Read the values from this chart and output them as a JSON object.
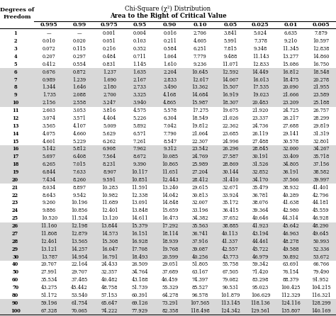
{
  "title1": "Chi-Square (χ²) Distribution",
  "title2": "Area to the Right of Critical Value",
  "col_headers": [
    "0.995",
    "0.99",
    "0.975",
    "0.95",
    "0.90",
    "0.10",
    "0.05",
    "0.025",
    "0.01",
    "0.005"
  ],
  "row_labels": [
    "1",
    "2",
    "3",
    "4",
    "5",
    "6",
    "7",
    "8",
    "9",
    "10",
    "11",
    "12",
    "13",
    "14",
    "15",
    "16",
    "17",
    "18",
    "19",
    "20",
    "21",
    "22",
    "23",
    "24",
    "25",
    "26",
    "27",
    "28",
    "29",
    "30",
    "40",
    "50",
    "60",
    "70",
    "80",
    "90",
    "100"
  ],
  "table_data": [
    [
      "—",
      "—",
      "0.001",
      "0.004",
      "0.016",
      "2.706",
      "3.841",
      "5.024",
      "6.635",
      "7.879"
    ],
    [
      "0.010",
      "0.020",
      "0.051",
      "0.103",
      "0.211",
      "4.605",
      "5.991",
      "7.378",
      "9.210",
      "10.597"
    ],
    [
      "0.072",
      "0.115",
      "0.216",
      "0.352",
      "0.584",
      "6.251",
      "7.815",
      "9.348",
      "11.345",
      "12.838"
    ],
    [
      "0.207",
      "0.297",
      "0.484",
      "0.711",
      "1.064",
      "7.779",
      "9.488",
      "11.143",
      "13.277",
      "14.860"
    ],
    [
      "0.412",
      "0.554",
      "0.831",
      "1.145",
      "1.610",
      "9.236",
      "11.071",
      "12.833",
      "15.086",
      "16.750"
    ],
    [
      "0.676",
      "0.872",
      "1.237",
      "1.635",
      "2.204",
      "10.645",
      "12.592",
      "14.449",
      "16.812",
      "18.548"
    ],
    [
      "0.989",
      "1.239",
      "1.690",
      "2.167",
      "2.833",
      "12.017",
      "14.067",
      "16.013",
      "18.475",
      "20.278"
    ],
    [
      "1.344",
      "1.646",
      "2.180",
      "2.733",
      "3.490",
      "13.362",
      "15.507",
      "17.535",
      "20.090",
      "21.955"
    ],
    [
      "1.735",
      "2.088",
      "2.700",
      "3.325",
      "4.168",
      "14.684",
      "16.919",
      "19.023",
      "21.666",
      "23.589"
    ],
    [
      "2.156",
      "2.558",
      "3.247",
      "3.940",
      "4.865",
      "15.987",
      "18.307",
      "20.483",
      "23.209",
      "25.188"
    ],
    [
      "2.603",
      "3.053",
      "3.816",
      "4.575",
      "5.578",
      "17.275",
      "19.675",
      "21.920",
      "24.725",
      "26.757"
    ],
    [
      "3.074",
      "3.571",
      "4.404",
      "5.226",
      "6.304",
      "18.549",
      "21.026",
      "23.337",
      "26.217",
      "28.299"
    ],
    [
      "3.565",
      "4.107",
      "5.009",
      "5.892",
      "7.042",
      "19.812",
      "22.362",
      "24.736",
      "27.688",
      "29.819"
    ],
    [
      "4.075",
      "4.660",
      "5.629",
      "6.571",
      "7.790",
      "21.064",
      "23.685",
      "26.119",
      "29.141",
      "31.319"
    ],
    [
      "4.601",
      "5.229",
      "6.262",
      "7.261",
      "8.547",
      "22.307",
      "24.996",
      "27.488",
      "30.578",
      "32.801"
    ],
    [
      "5.142",
      "5.812",
      "6.908",
      "7.962",
      "9.312",
      "23.542",
      "26.296",
      "28.845",
      "32.000",
      "34.267"
    ],
    [
      "5.697",
      "6.408",
      "7.564",
      "8.672",
      "10.085",
      "24.769",
      "27.587",
      "30.191",
      "33.409",
      "35.718"
    ],
    [
      "6.265",
      "7.015",
      "8.231",
      "9.390",
      "10.865",
      "25.989",
      "28.869",
      "31.526",
      "34.805",
      "37.156"
    ],
    [
      "6.844",
      "7.633",
      "8.907",
      "10.117",
      "11.651",
      "27.204",
      "30.144",
      "32.852",
      "36.191",
      "38.582"
    ],
    [
      "7.434",
      "8.260",
      "9.591",
      "10.851",
      "12.443",
      "28.412",
      "31.410",
      "34.170",
      "37.566",
      "39.997"
    ],
    [
      "8.034",
      "8.897",
      "10.283",
      "11.591",
      "13.240",
      "29.615",
      "32.671",
      "35.479",
      "38.932",
      "41.401"
    ],
    [
      "8.643",
      "9.542",
      "10.982",
      "12.338",
      "14.042",
      "30.813",
      "33.924",
      "36.781",
      "40.289",
      "42.796"
    ],
    [
      "9.260",
      "10.196",
      "11.689",
      "13.091",
      "14.848",
      "32.007",
      "35.172",
      "38.076",
      "41.638",
      "44.181"
    ],
    [
      "9.886",
      "10.856",
      "12.401",
      "13.848",
      "15.659",
      "33.196",
      "36.415",
      "39.364",
      "42.980",
      "45.559"
    ],
    [
      "10.520",
      "11.524",
      "13.120",
      "14.611",
      "16.473",
      "34.382",
      "37.652",
      "40.646",
      "44.314",
      "46.928"
    ],
    [
      "11.160",
      "12.198",
      "13.844",
      "15.379",
      "17.292",
      "35.563",
      "38.885",
      "41.923",
      "45.642",
      "48.290"
    ],
    [
      "11.808",
      "12.879",
      "14.573",
      "16.151",
      "18.114",
      "36.741",
      "40.113",
      "43.194",
      "46.963",
      "49.645"
    ],
    [
      "12.461",
      "13.565",
      "15.308",
      "16.928",
      "18.939",
      "37.916",
      "41.337",
      "44.461",
      "48.278",
      "50.993"
    ],
    [
      "13.121",
      "14.257",
      "16.047",
      "17.708",
      "19.768",
      "39.087",
      "42.557",
      "45.722",
      "49.588",
      "52.336"
    ],
    [
      "13.787",
      "14.954",
      "16.791",
      "18.493",
      "20.599",
      "40.256",
      "43.773",
      "46.979",
      "50.892",
      "53.672"
    ],
    [
      "20.707",
      "22.164",
      "24.433",
      "26.509",
      "29.051",
      "51.805",
      "55.758",
      "59.342",
      "63.691",
      "66.766"
    ],
    [
      "27.991",
      "29.707",
      "32.357",
      "34.764",
      "37.689",
      "63.167",
      "67.505",
      "71.420",
      "76.154",
      "79.490"
    ],
    [
      "35.534",
      "37.485",
      "40.482",
      "43.188",
      "46.459",
      "74.397",
      "79.082",
      "83.298",
      "88.379",
      "91.952"
    ],
    [
      "43.275",
      "45.442",
      "48.758",
      "51.739",
      "55.329",
      "85.527",
      "90.531",
      "95.023",
      "100.425",
      "104.215"
    ],
    [
      "51.172",
      "53.540",
      "57.153",
      "60.391",
      "64.278",
      "96.578",
      "101.879",
      "106.629",
      "112.329",
      "116.321"
    ],
    [
      "59.196",
      "61.754",
      "65.647",
      "69.126",
      "73.291",
      "107.565",
      "113.145",
      "118.136",
      "124.116",
      "128.299"
    ],
    [
      "67.328",
      "70.065",
      "74.222",
      "77.929",
      "82.358",
      "118.498",
      "124.342",
      "129.561",
      "135.807",
      "140.169"
    ]
  ],
  "bg_gray": "#d8d8d8",
  "bg_white": "#ffffff",
  "font_size": 4.8,
  "header_font_size": 5.8,
  "title_font_size": 6.2
}
